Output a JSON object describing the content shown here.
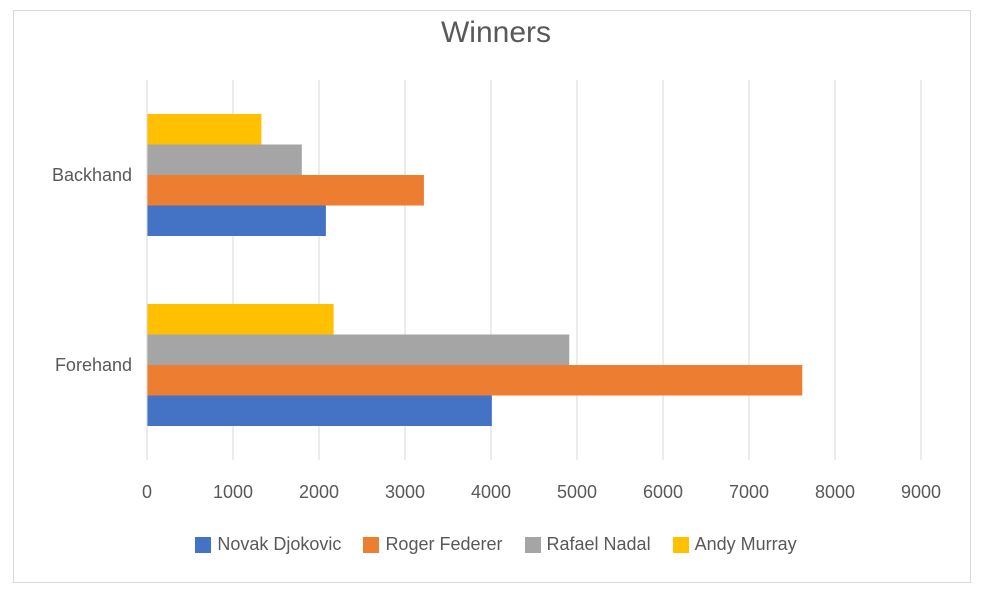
{
  "chart_data": {
    "type": "bar",
    "orientation": "horizontal",
    "title": "Winners",
    "categories": [
      "Backhand",
      "Forehand"
    ],
    "series": [
      {
        "name": "Novak Djokovic",
        "values": [
          2080,
          4010
        ],
        "color": "#4472c4"
      },
      {
        "name": "Roger Federer",
        "values": [
          3220,
          7620
        ],
        "color": "#ed7d31"
      },
      {
        "name": "Rafael Nadal",
        "values": [
          1800,
          4910
        ],
        "color": "#a5a5a5"
      },
      {
        "name": "Andy Murray",
        "values": [
          1330,
          2170
        ],
        "color": "#ffc000"
      }
    ],
    "xlim": [
      0,
      9000
    ],
    "xticks": [
      "0",
      "1000",
      "2000",
      "3000",
      "4000",
      "5000",
      "6000",
      "7000",
      "8000",
      "9000"
    ],
    "grid": "vertical",
    "legend": "bottom"
  }
}
